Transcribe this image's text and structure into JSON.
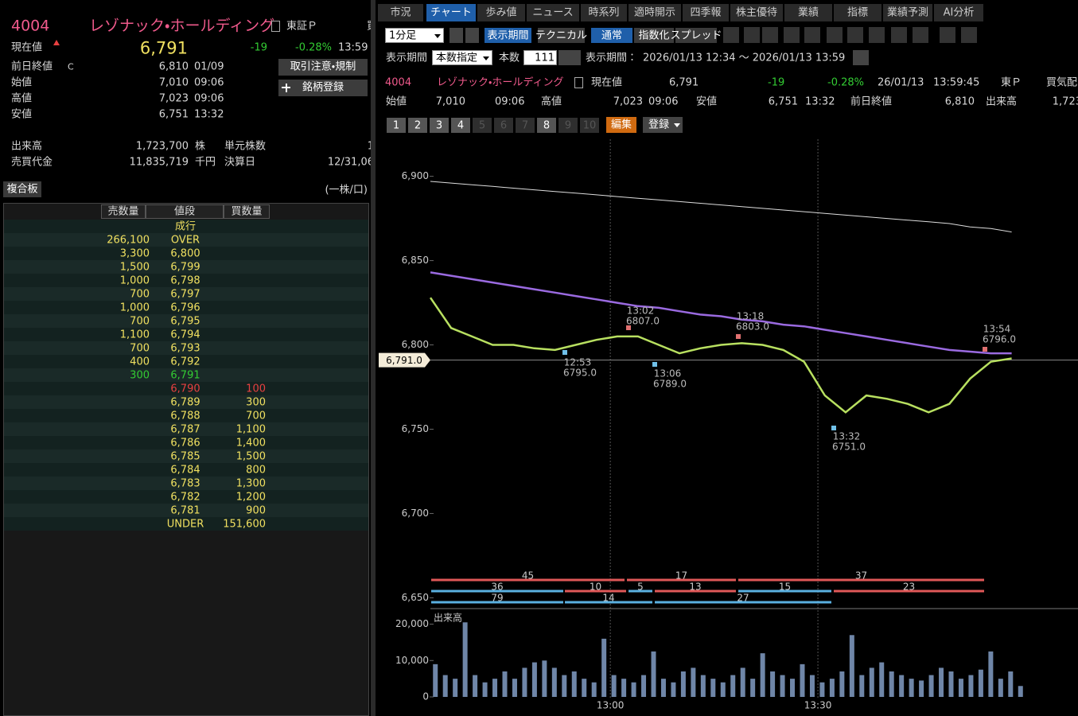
{
  "quote_panel": {
    "code": "4004",
    "name": "レゾナック・ホールディング",
    "market": "東証Ｐ",
    "clipped": "買",
    "current_label": "現在値",
    "current_price": "6,791",
    "change": "-19",
    "change_pct": "-0.28%",
    "time": "13:59",
    "rows": [
      {
        "label": "前日終値",
        "flag": "C",
        "price": "6,810",
        "time": "01/09"
      },
      {
        "label": "始値",
        "price": "7,010",
        "time": "09:06"
      },
      {
        "label": "高値",
        "price": "7,023",
        "time": "09:06"
      },
      {
        "label": "安値",
        "price": "6,751",
        "time": "13:32"
      }
    ],
    "buttons": [
      "取引注意・規制",
      "銘柄登録"
    ],
    "stats": [
      {
        "label": "出来高",
        "value": "1,723,700",
        "unit": "株",
        "label2": "単元株数",
        "value2": "1"
      },
      {
        "label": "売買代金",
        "value": "11,835,719",
        "unit": "千円",
        "label2": "決算日",
        "value2": "12/31,06"
      }
    ]
  },
  "order_book": {
    "title": "複合板",
    "unit_note": "(一株/口)",
    "columns": [
      "売数量",
      "値段",
      "買数量"
    ],
    "best_ask_row": 11,
    "best_bid_row": 12,
    "rows": [
      [
        null,
        "成行",
        null
      ],
      [
        "266,100",
        "OVER",
        null
      ],
      [
        "3,300",
        "6,800",
        null
      ],
      [
        "1,500",
        "6,799",
        null
      ],
      [
        "1,000",
        "6,798",
        null
      ],
      [
        "700",
        "6,797",
        null
      ],
      [
        "1,000",
        "6,796",
        null
      ],
      [
        "700",
        "6,795",
        null
      ],
      [
        "1,100",
        "6,794",
        null
      ],
      [
        "700",
        "6,793",
        null
      ],
      [
        "400",
        "6,792",
        null
      ],
      [
        "300",
        "6,791",
        null
      ],
      [
        null,
        "6,790",
        "100"
      ],
      [
        null,
        "6,789",
        "300"
      ],
      [
        null,
        "6,788",
        "700"
      ],
      [
        null,
        "6,787",
        "1,100"
      ],
      [
        null,
        "6,786",
        "1,400"
      ],
      [
        null,
        "6,785",
        "1,500"
      ],
      [
        null,
        "6,784",
        "800"
      ],
      [
        null,
        "6,783",
        "1,300"
      ],
      [
        null,
        "6,782",
        "1,200"
      ],
      [
        null,
        "6,781",
        "900"
      ],
      [
        null,
        "UNDER",
        "151,600"
      ]
    ]
  },
  "tabs": [
    "市況",
    "チャート",
    "歩み値",
    "ニュース",
    "時系列",
    "適時開示",
    "四季報",
    "株主優待",
    "業績",
    "指標",
    "業績予測",
    "AI分析"
  ],
  "active_tab": 1,
  "toolbar": {
    "interval": "1分足",
    "period_button": "表示期間",
    "technical": "テクニカル",
    "modes": [
      "通常",
      "指数化",
      "スプレッド"
    ],
    "active_mode": 0,
    "period_label": "表示期間",
    "count_mode": "本数指定",
    "count_label": "本数",
    "count": "111",
    "range_label": "表示期間：",
    "range": "2026/01/13 12:34 〜 2026/01/13 13:59",
    "pages": [
      {
        "label": "1",
        "enabled": true
      },
      {
        "label": "2",
        "enabled": true
      },
      {
        "label": "3",
        "enabled": true
      },
      {
        "label": "4",
        "enabled": true
      },
      {
        "label": "5",
        "enabled": false
      },
      {
        "label": "6",
        "enabled": false
      },
      {
        "label": "7",
        "enabled": false
      },
      {
        "label": "8",
        "enabled": true
      },
      {
        "label": "9",
        "enabled": false
      },
      {
        "label": "10",
        "enabled": false
      }
    ],
    "edit_button": "編集",
    "register_button": "登録"
  },
  "info": {
    "code": "4004",
    "name": "レゾナック・ホールディング",
    "current_label": "現在値",
    "current": "6,791",
    "change": "-19",
    "change_pct": "-0.28%",
    "date": "26/01/13",
    "time": "13:59:45",
    "market": "東Ｐ",
    "quote_label": "買気配",
    "items": [
      {
        "label": "始値",
        "value": "7,010",
        "time": "09:06"
      },
      {
        "label": "高値",
        "value": "7,023",
        "time": "09:06"
      },
      {
        "label": "安値",
        "value": "6,751",
        "time": "13:32"
      },
      {
        "label": "前日終値",
        "value": "6,810"
      },
      {
        "label": "出来高",
        "value": "1,723"
      }
    ]
  },
  "chart_data": [
    {
      "type": "line",
      "x": [
        754,
        757,
        760,
        763,
        766,
        769,
        772,
        775,
        778,
        781,
        784,
        787,
        790,
        793,
        796,
        799,
        802,
        805,
        808,
        811,
        814,
        817,
        820,
        823,
        826,
        829,
        832,
        835,
        838
      ],
      "xlim": [
        754,
        840
      ],
      "xticks": [
        {
          "value": 780,
          "label": "13:00"
        },
        {
          "value": 810,
          "label": "13:30"
        }
      ],
      "ylim": [
        6645,
        6922
      ],
      "yticks": [
        {
          "value": 6900,
          "label": "6,900"
        },
        {
          "value": 6850,
          "label": "6,850"
        },
        {
          "value": 6800,
          "label": "6,800"
        },
        {
          "value": 6750,
          "label": "6,750"
        },
        {
          "value": 6700,
          "label": "6,700"
        },
        {
          "value": 6650,
          "label": "6,650"
        }
      ],
      "series": [
        {
          "color": "#dddddd",
          "values": [
            6897,
            6896,
            6895,
            6894,
            6893,
            6892,
            6891,
            6890,
            6889,
            6888,
            6887,
            6886,
            6885,
            6884,
            6883,
            6882,
            6881,
            6880,
            6879,
            6878,
            6877,
            6876,
            6875,
            6874,
            6873,
            6872,
            6870,
            6869,
            6867
          ]
        },
        {
          "color": "#9a6ae0",
          "values": [
            6843,
            6841,
            6839,
            6837,
            6835,
            6833,
            6831,
            6829,
            6827,
            6825,
            6823,
            6822,
            6820,
            6818,
            6817,
            6815,
            6814,
            6812,
            6811,
            6809,
            6807,
            6805,
            6803,
            6801,
            6799,
            6797,
            6796,
            6795,
            6795
          ]
        },
        {
          "color": "#b8e060",
          "values": [
            6828,
            6810,
            6805,
            6800,
            6800,
            6798,
            6797,
            6800,
            6803,
            6805,
            6805,
            6800,
            6795,
            6798,
            6800,
            6801,
            6800,
            6797,
            6790,
            6770,
            6760,
            6770,
            6768,
            6765,
            6760,
            6765,
            6780,
            6790,
            6792
          ]
        }
      ],
      "price_line": {
        "value": 6791,
        "label": "6,791.0"
      },
      "annotations": [
        {
          "time": "13:02",
          "price": "6807.0"
        },
        {
          "time": "12:53",
          "price": "6795.0"
        },
        {
          "time": "13:06",
          "price": "6789.0"
        },
        {
          "time": "13:18",
          "price": "6803.0"
        },
        {
          "time": "13:32",
          "price": "6751.0"
        },
        {
          "time": "13:54",
          "price": "6796.0"
        }
      ],
      "bands": [
        [
          45,
          17,
          37
        ],
        [
          36,
          10,
          5,
          13,
          15,
          23
        ],
        [
          79,
          14,
          27
        ]
      ]
    },
    {
      "type": "bar",
      "title": "出来高",
      "color": "#6f86a8",
      "ylim": [
        0,
        21000
      ],
      "yticks": [
        {
          "value": 20000,
          "label": "20,000"
        },
        {
          "value": 10000,
          "label": "10,000"
        },
        0
      ],
      "values": [
        9000,
        6000,
        5000,
        20500,
        6000,
        4000,
        5000,
        7000,
        5000,
        8000,
        9500,
        10000,
        8000,
        6000,
        7000,
        5000,
        4000,
        16000,
        6000,
        5000,
        4000,
        6000,
        12500,
        5000,
        4000,
        7000,
        8000,
        6000,
        5000,
        4000,
        6000,
        8000,
        5000,
        12000,
        7000,
        6000,
        5000,
        9000,
        6000,
        4000,
        5000,
        7000,
        17000,
        6000,
        8000,
        9500,
        7000,
        6000,
        5000,
        4500,
        6000,
        8000,
        7000,
        5000,
        6000,
        7500,
        12500,
        5000,
        7000,
        3000
      ]
    }
  ]
}
